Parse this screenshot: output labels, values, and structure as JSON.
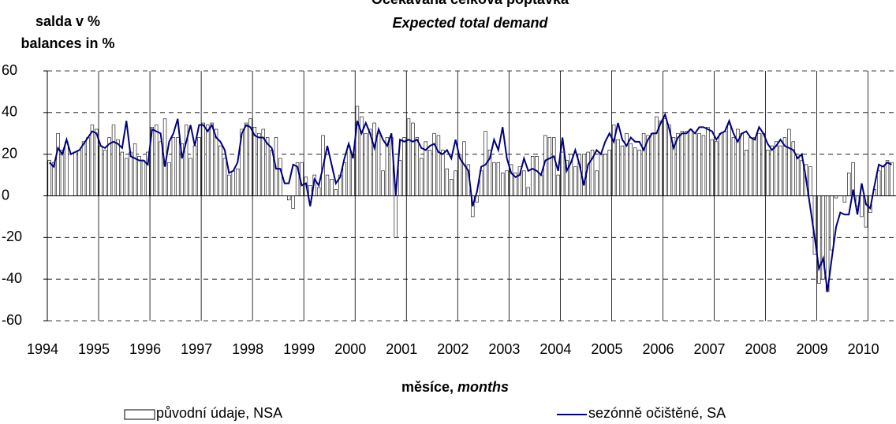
{
  "chart_data": {
    "type": "bar_line",
    "title": "Očekávaná celková poptávka",
    "subtitle": "Expected total demand",
    "y_label": "salda v %",
    "y_label_en": "balances in %",
    "x_label": "měsíce,",
    "x_label_en": "months",
    "ylim": [
      -60,
      60
    ],
    "yticks": [
      -60,
      -40,
      -20,
      0,
      20,
      40,
      60
    ],
    "grid": true,
    "categories": [
      "1994",
      null,
      null,
      null,
      null,
      null,
      null,
      null,
      null,
      null,
      null,
      null,
      "1995",
      null,
      null,
      null,
      null,
      null,
      null,
      null,
      null,
      null,
      null,
      null,
      "1996",
      null,
      null,
      null,
      null,
      null,
      null,
      null,
      null,
      null,
      null,
      null,
      "1997",
      null,
      null,
      null,
      null,
      null,
      null,
      null,
      null,
      null,
      null,
      null,
      "1998",
      null,
      null,
      null,
      null,
      null,
      null,
      null,
      null,
      null,
      null,
      null,
      "1999",
      null,
      null,
      null,
      null,
      null,
      null,
      null,
      null,
      null,
      null,
      null,
      "2000",
      null,
      null,
      null,
      null,
      null,
      null,
      null,
      null,
      null,
      null,
      null,
      "2001",
      null,
      null,
      null,
      null,
      null,
      null,
      null,
      null,
      null,
      null,
      null,
      "2002",
      null,
      null,
      null,
      null,
      null,
      null,
      null,
      null,
      null,
      null,
      null,
      "2003",
      null,
      null,
      null,
      null,
      null,
      null,
      null,
      null,
      null,
      null,
      null,
      "2004",
      null,
      null,
      null,
      null,
      null,
      null,
      null,
      null,
      null,
      null,
      null,
      "2005",
      null,
      null,
      null,
      null,
      null,
      null,
      null,
      null,
      null,
      null,
      null,
      "2006",
      null,
      null,
      null,
      null,
      null,
      null,
      null,
      null,
      null,
      null,
      null,
      "2007",
      null,
      null,
      null,
      null,
      null,
      null,
      null,
      null,
      null,
      null,
      null,
      "2008",
      null,
      null,
      null,
      null,
      null,
      null,
      null,
      null,
      null,
      null,
      null,
      "2009",
      null,
      null,
      null,
      null,
      null,
      null,
      null,
      null,
      null,
      null,
      null,
      "2010",
      null,
      null,
      null,
      null,
      null
    ],
    "series": [
      {
        "name": "původní údaje, NSA",
        "type": "bar",
        "color": "#ffffff",
        "stroke": "#000000",
        "values": [
          17,
          16,
          30,
          22,
          26,
          0,
          21,
          22,
          26,
          28,
          34,
          32,
          24,
          22,
          28,
          34,
          27,
          21,
          18,
          21,
          25,
          19,
          17,
          21,
          33,
          34,
          26,
          37,
          16,
          28,
          28,
          25,
          34,
          18,
          24,
          28,
          35,
          34,
          35,
          32,
          24,
          18,
          10,
          12,
          13,
          32,
          35,
          37,
          33,
          30,
          32,
          28,
          22,
          28,
          18,
          0,
          -2,
          -6,
          16,
          16,
          9,
          5,
          10,
          4,
          29,
          10,
          8,
          3,
          10,
          16,
          24,
          20,
          43,
          38,
          30,
          32,
          35,
          30,
          12,
          28,
          28,
          -20,
          17,
          28,
          37,
          35,
          28,
          18,
          26,
          22,
          30,
          29,
          22,
          13,
          8,
          12,
          20,
          26,
          15,
          -10,
          -3,
          12,
          31,
          22,
          16,
          16,
          11,
          12,
          15,
          11,
          14,
          12,
          4,
          19,
          19,
          10,
          29,
          28,
          28,
          10,
          21,
          17,
          20,
          14,
          20,
          20,
          21,
          22,
          12,
          20,
          20,
          22,
          34,
          27,
          24,
          30,
          25,
          23,
          22,
          30,
          29,
          30,
          38,
          36,
          37,
          34,
          28,
          30,
          31,
          31,
          32,
          30,
          30,
          29,
          33,
          27,
          26,
          30,
          31,
          34,
          28,
          32,
          30,
          22,
          28,
          28,
          30,
          30,
          22,
          24,
          26,
          24,
          28,
          32,
          26,
          20,
          17,
          15,
          14,
          -28,
          -42,
          -40,
          -46,
          -26,
          -1,
          0,
          -3,
          11,
          16,
          -5,
          -10,
          -15,
          -8,
          3,
          12,
          14,
          17,
          16
        ]
      },
      {
        "name": "sezónně očištěné, SA",
        "type": "line",
        "color": "#000080",
        "values": [
          16,
          14,
          23,
          20,
          27,
          20,
          21,
          22,
          25,
          28,
          31,
          30,
          24,
          23,
          25,
          26,
          25,
          23,
          36,
          19,
          18,
          17,
          17,
          15,
          32,
          31,
          30,
          14,
          26,
          30,
          37,
          18,
          26,
          34,
          24,
          34,
          34,
          31,
          34,
          28,
          26,
          22,
          11,
          12,
          16,
          30,
          34,
          33,
          29,
          28,
          28,
          25,
          23,
          13,
          13,
          6,
          6,
          15,
          14,
          5,
          6,
          -5,
          8,
          5,
          14,
          24,
          15,
          6,
          9,
          18,
          25,
          18,
          36,
          30,
          35,
          30,
          23,
          32,
          27,
          24,
          30,
          0,
          27,
          26,
          27,
          26,
          27,
          23,
          22,
          24,
          25,
          21,
          20,
          22,
          18,
          27,
          18,
          15,
          12,
          -5,
          2,
          14,
          15,
          18,
          27,
          22,
          33,
          18,
          11,
          9,
          10,
          18,
          12,
          13,
          12,
          10,
          17,
          18,
          19,
          12,
          28,
          12,
          16,
          22,
          15,
          5,
          15,
          18,
          22,
          20,
          26,
          30,
          26,
          35,
          27,
          24,
          28,
          26,
          26,
          22,
          27,
          30,
          30,
          35,
          39,
          32,
          23,
          28,
          30,
          30,
          32,
          30,
          33,
          33,
          32,
          31,
          27,
          30,
          31,
          36,
          30,
          26,
          30,
          31,
          28,
          27,
          33,
          30,
          25,
          22,
          24,
          27,
          24,
          23,
          22,
          18,
          20,
          8,
          -6,
          -20,
          -35,
          -30,
          -46,
          -30,
          -15,
          -8,
          -9,
          -9,
          3,
          -9,
          6,
          -4,
          -6,
          5,
          15,
          14,
          16,
          15
        ]
      }
    ]
  }
}
